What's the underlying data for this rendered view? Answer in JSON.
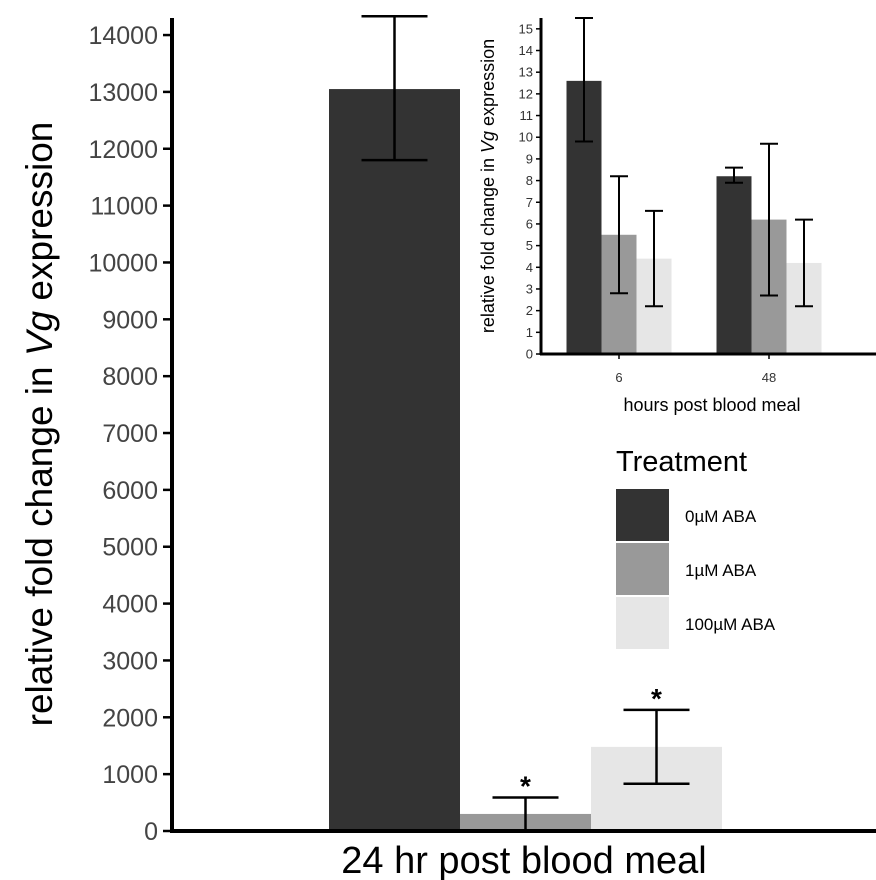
{
  "chart_data": [
    {
      "type": "bar",
      "title": "",
      "xlabel": "24 hr post blood meal",
      "ylabel_prefix": "relative fold change in ",
      "ylabel_italic": "Vg",
      "ylabel_suffix": " expression",
      "categories": [
        ""
      ],
      "ylim": [
        0,
        14300
      ],
      "yticks": [
        0,
        1000,
        2000,
        3000,
        4000,
        5000,
        6000,
        7000,
        8000,
        9000,
        10000,
        11000,
        12000,
        13000,
        14000
      ],
      "series": [
        {
          "name": "0µM ABA",
          "color": "#333333",
          "values": [
            13050
          ],
          "err_low": [
            11800
          ],
          "err_high": [
            14330
          ],
          "annotation": ""
        },
        {
          "name": "1µM ABA",
          "color": "#999999",
          "values": [
            300
          ],
          "err_low": [
            0
          ],
          "err_high": [
            590
          ],
          "annotation": "*"
        },
        {
          "name": "100µM ABA",
          "color": "#e6e6e6",
          "values": [
            1480
          ],
          "err_low": [
            830
          ],
          "err_high": [
            2130
          ],
          "annotation": "*"
        }
      ]
    },
    {
      "type": "bar",
      "title": "",
      "xlabel": "hours post blood meal",
      "ylabel_prefix": "relative fold change in ",
      "ylabel_italic": "Vg",
      "ylabel_suffix": " expression",
      "categories": [
        "6",
        "48"
      ],
      "ylim": [
        0,
        15.5
      ],
      "yticks": [
        0,
        1,
        2,
        3,
        4,
        5,
        6,
        7,
        8,
        9,
        10,
        11,
        12,
        13,
        14,
        15
      ],
      "series": [
        {
          "name": "0µM ABA",
          "color": "#333333",
          "values": [
            12.6,
            8.2
          ],
          "err_low": [
            9.8,
            7.9
          ],
          "err_high": [
            15.5,
            8.6
          ]
        },
        {
          "name": "1µM ABA",
          "color": "#999999",
          "values": [
            5.5,
            6.2
          ],
          "err_low": [
            2.8,
            2.7
          ],
          "err_high": [
            8.2,
            9.7
          ]
        },
        {
          "name": "100µM ABA",
          "color": "#e6e6e6",
          "values": [
            4.4,
            4.2
          ],
          "err_low": [
            2.2,
            2.2
          ],
          "err_high": [
            6.6,
            6.2
          ]
        }
      ]
    }
  ],
  "legend": {
    "title": "Treatment",
    "items": [
      {
        "label": "0µM ABA",
        "color": "#333333"
      },
      {
        "label": "1µM ABA",
        "color": "#999999"
      },
      {
        "label": "100µM ABA",
        "color": "#e6e6e6"
      }
    ]
  }
}
